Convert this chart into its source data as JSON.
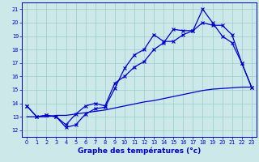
{
  "xlabel": "Graphe des températures (°c)",
  "x": [
    0,
    1,
    2,
    3,
    4,
    5,
    6,
    7,
    8,
    9,
    10,
    11,
    12,
    13,
    14,
    15,
    16,
    17,
    18,
    19,
    20,
    21,
    22,
    23
  ],
  "line1": [
    13.8,
    13.0,
    13.1,
    13.0,
    12.2,
    12.4,
    13.2,
    13.6,
    13.7,
    15.1,
    16.6,
    17.6,
    18.0,
    19.1,
    18.6,
    18.6,
    19.1,
    19.4,
    21.0,
    20.0,
    19.0,
    18.5,
    17.0,
    15.2
  ],
  "line2": [
    13.8,
    13.0,
    13.1,
    13.0,
    12.4,
    13.2,
    13.8,
    14.0,
    13.8,
    15.5,
    16.0,
    16.7,
    17.1,
    18.0,
    18.5,
    19.5,
    19.4,
    19.4,
    20.0,
    19.8,
    19.8,
    19.1,
    17.0,
    15.2
  ],
  "line3": [
    13.0,
    13.0,
    13.0,
    13.1,
    13.1,
    13.2,
    13.3,
    13.4,
    13.5,
    13.65,
    13.8,
    13.95,
    14.1,
    14.2,
    14.35,
    14.5,
    14.65,
    14.8,
    14.95,
    15.05,
    15.1,
    15.15,
    15.2,
    15.2
  ],
  "line_color": "#0000cc",
  "background_color": "#cce8e8",
  "grid_color": "#99cccc",
  "ylim": [
    11.5,
    21.5
  ],
  "xlim": [
    -0.5,
    23.5
  ],
  "yticks": [
    12,
    13,
    14,
    15,
    16,
    17,
    18,
    19,
    20,
    21
  ],
  "xticks": [
    0,
    1,
    2,
    3,
    4,
    5,
    6,
    7,
    8,
    9,
    10,
    11,
    12,
    13,
    14,
    15,
    16,
    17,
    18,
    19,
    20,
    21,
    22,
    23
  ],
  "tick_fontsize": 4.8,
  "xlabel_fontsize": 6.5
}
